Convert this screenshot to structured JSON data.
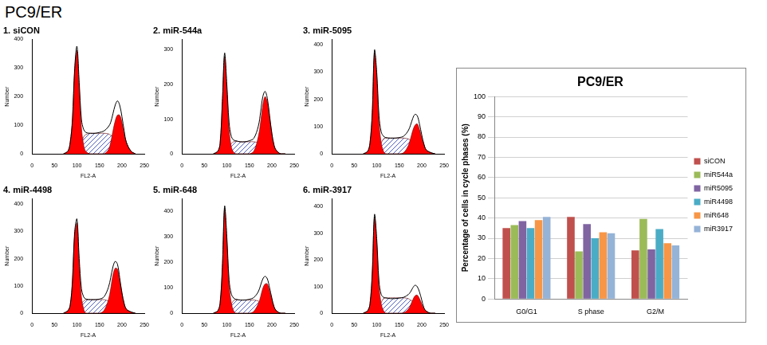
{
  "page_title": "PC9/ER",
  "chart_data": [
    {
      "type": "line",
      "title": "1. siCON",
      "x_label": "FL2-A",
      "y_label": "Number",
      "x": [
        70,
        80,
        85,
        90,
        95,
        100,
        105,
        110,
        115,
        120,
        130,
        140,
        150,
        160,
        170,
        175,
        180,
        185,
        190,
        195,
        200,
        205,
        210,
        220,
        230
      ],
      "series": [
        {
          "type": "line",
          "color": "#000000",
          "values": [
            0,
            10,
            40,
            120,
            300,
            375,
            250,
            120,
            85,
            75,
            72,
            72,
            75,
            80,
            95,
            110,
            140,
            170,
            185,
            170,
            130,
            80,
            40,
            10,
            0
          ]
        },
        {
          "type": "area",
          "color": "#ff0000",
          "values": [
            0,
            10,
            40,
            120,
            290,
            360,
            230,
            90,
            30,
            8,
            0,
            0,
            0,
            0,
            0,
            0,
            0,
            0,
            0,
            0,
            0,
            0,
            0,
            0,
            0
          ]
        },
        {
          "type": "area",
          "color": "#ff0000",
          "values": [
            0,
            0,
            0,
            0,
            0,
            0,
            0,
            0,
            0,
            0,
            0,
            0,
            0,
            0,
            15,
            40,
            80,
            115,
            135,
            135,
            110,
            70,
            40,
            10,
            0
          ]
        },
        {
          "type": "area",
          "color": "#5060c0",
          "values": [
            0,
            0,
            0,
            0,
            0,
            10,
            25,
            40,
            60,
            68,
            72,
            72,
            72,
            72,
            70,
            65,
            60,
            50,
            40,
            30,
            20,
            10,
            0,
            0,
            0
          ]
        }
      ],
      "xlim": [
        0,
        250
      ],
      "xticks": [
        0,
        50,
        100,
        150,
        200,
        250
      ],
      "ylim": [
        0,
        400
      ],
      "yticks": [
        0,
        100,
        200,
        300,
        400
      ],
      "grid": false
    },
    {
      "type": "line",
      "title": "2. miR-544a",
      "x_label": "FL2-A",
      "y_label": "Number",
      "x": [
        70,
        80,
        85,
        90,
        95,
        100,
        105,
        110,
        115,
        120,
        130,
        140,
        150,
        160,
        170,
        175,
        180,
        185,
        190,
        195,
        200,
        205,
        210,
        220,
        230
      ],
      "series": [
        {
          "type": "line",
          "color": "#000000",
          "values": [
            0,
            8,
            30,
            150,
            290,
            200,
            90,
            50,
            40,
            38,
            35,
            35,
            38,
            45,
            80,
            120,
            165,
            180,
            160,
            110,
            60,
            25,
            10,
            0,
            0
          ]
        },
        {
          "type": "area",
          "color": "#ff0000",
          "values": [
            0,
            8,
            30,
            145,
            280,
            185,
            70,
            20,
            5,
            0,
            0,
            0,
            0,
            0,
            0,
            0,
            0,
            0,
            0,
            0,
            0,
            0,
            0,
            0,
            0
          ]
        },
        {
          "type": "area",
          "color": "#ff0000",
          "values": [
            0,
            0,
            0,
            0,
            0,
            0,
            0,
            0,
            0,
            0,
            0,
            0,
            0,
            8,
            50,
            90,
            140,
            165,
            150,
            105,
            58,
            24,
            10,
            0,
            0
          ]
        },
        {
          "type": "area",
          "color": "#5060c0",
          "values": [
            0,
            0,
            0,
            0,
            0,
            10,
            20,
            30,
            35,
            36,
            35,
            35,
            35,
            35,
            32,
            28,
            22,
            15,
            8,
            0,
            0,
            0,
            0,
            0,
            0
          ]
        }
      ],
      "xlim": [
        0,
        250
      ],
      "xticks": [
        0,
        50,
        100,
        150,
        200,
        250
      ],
      "ylim": [
        0,
        330
      ],
      "yticks": [
        0,
        100,
        200,
        300
      ],
      "grid": false
    },
    {
      "type": "line",
      "title": "3. miR-5095",
      "x_label": "FL2-A",
      "y_label": "Number",
      "x": [
        70,
        80,
        85,
        90,
        95,
        100,
        105,
        110,
        115,
        120,
        130,
        140,
        150,
        160,
        170,
        175,
        180,
        185,
        190,
        195,
        200,
        205,
        210,
        220,
        230
      ],
      "series": [
        {
          "type": "line",
          "color": "#000000",
          "values": [
            0,
            10,
            40,
            150,
            380,
            300,
            140,
            80,
            65,
            60,
            58,
            58,
            60,
            65,
            85,
            105,
            130,
            145,
            140,
            110,
            70,
            35,
            15,
            5,
            0
          ]
        },
        {
          "type": "area",
          "color": "#ff0000",
          "values": [
            0,
            10,
            40,
            145,
            370,
            285,
            115,
            40,
            10,
            0,
            0,
            0,
            0,
            0,
            0,
            0,
            0,
            0,
            0,
            0,
            0,
            0,
            0,
            0,
            0
          ]
        },
        {
          "type": "area",
          "color": "#ff0000",
          "values": [
            0,
            0,
            0,
            0,
            0,
            0,
            0,
            0,
            0,
            0,
            0,
            0,
            0,
            5,
            30,
            55,
            85,
            105,
            110,
            90,
            60,
            35,
            15,
            5,
            0
          ]
        },
        {
          "type": "area",
          "color": "#5060c0",
          "values": [
            0,
            0,
            0,
            0,
            0,
            10,
            25,
            40,
            55,
            58,
            58,
            58,
            58,
            58,
            55,
            50,
            45,
            38,
            30,
            20,
            10,
            0,
            0,
            0,
            0
          ]
        }
      ],
      "xlim": [
        0,
        250
      ],
      "xticks": [
        0,
        50,
        100,
        150,
        200,
        250
      ],
      "ylim": [
        0,
        420
      ],
      "yticks": [
        0,
        100,
        200,
        300,
        400
      ],
      "grid": false
    },
    {
      "type": "line",
      "title": "4. miR-4498",
      "x_label": "FL2-A",
      "y_label": "Number",
      "x": [
        70,
        80,
        85,
        90,
        95,
        100,
        105,
        110,
        115,
        120,
        130,
        140,
        150,
        160,
        170,
        175,
        180,
        185,
        190,
        195,
        200,
        205,
        210,
        220,
        230
      ],
      "series": [
        {
          "type": "line",
          "color": "#000000",
          "values": [
            0,
            10,
            30,
            120,
            300,
            345,
            200,
            90,
            60,
            52,
            50,
            50,
            52,
            60,
            95,
            130,
            170,
            190,
            180,
            130,
            75,
            35,
            15,
            5,
            0
          ]
        },
        {
          "type": "area",
          "color": "#ff0000",
          "values": [
            0,
            10,
            30,
            115,
            290,
            330,
            180,
            60,
            15,
            0,
            0,
            0,
            0,
            0,
            0,
            0,
            0,
            0,
            0,
            0,
            0,
            0,
            0,
            0,
            0
          ]
        },
        {
          "type": "area",
          "color": "#ff0000",
          "values": [
            0,
            0,
            0,
            0,
            0,
            0,
            0,
            0,
            0,
            0,
            0,
            0,
            0,
            10,
            50,
            90,
            140,
            165,
            162,
            120,
            75,
            35,
            15,
            5,
            0
          ]
        },
        {
          "type": "area",
          "color": "#5060c0",
          "values": [
            0,
            0,
            0,
            0,
            0,
            10,
            20,
            35,
            45,
            50,
            50,
            50,
            50,
            50,
            45,
            40,
            32,
            25,
            18,
            10,
            0,
            0,
            0,
            0,
            0
          ]
        }
      ],
      "xlim": [
        0,
        250
      ],
      "xticks": [
        0,
        50,
        100,
        150,
        200,
        250
      ],
      "ylim": [
        0,
        420
      ],
      "yticks": [
        0,
        100,
        200,
        300,
        400
      ],
      "grid": false
    },
    {
      "type": "line",
      "title": "5. miR-648",
      "x_label": "FL2-A",
      "y_label": "Number",
      "x": [
        70,
        80,
        85,
        90,
        95,
        100,
        105,
        110,
        115,
        120,
        130,
        140,
        150,
        160,
        170,
        175,
        180,
        185,
        190,
        195,
        200,
        205,
        210,
        220,
        230
      ],
      "series": [
        {
          "type": "line",
          "color": "#000000",
          "values": [
            0,
            10,
            40,
            180,
            420,
            300,
            130,
            75,
            60,
            55,
            52,
            52,
            55,
            62,
            85,
            110,
            135,
            145,
            135,
            100,
            60,
            25,
            10,
            0,
            0
          ]
        },
        {
          "type": "area",
          "color": "#ff0000",
          "values": [
            0,
            10,
            40,
            175,
            410,
            285,
            110,
            40,
            10,
            0,
            0,
            0,
            0,
            0,
            0,
            0,
            0,
            0,
            0,
            0,
            0,
            0,
            0,
            0,
            0
          ]
        },
        {
          "type": "area",
          "color": "#ff0000",
          "values": [
            0,
            0,
            0,
            0,
            0,
            0,
            0,
            0,
            0,
            0,
            0,
            0,
            0,
            8,
            38,
            65,
            98,
            115,
            115,
            88,
            55,
            25,
            10,
            0,
            0
          ]
        },
        {
          "type": "area",
          "color": "#5060c0",
          "values": [
            0,
            0,
            0,
            0,
            0,
            10,
            20,
            35,
            50,
            53,
            52,
            52,
            52,
            52,
            48,
            42,
            35,
            28,
            20,
            12,
            5,
            0,
            0,
            0,
            0
          ]
        }
      ],
      "xlim": [
        0,
        250
      ],
      "xticks": [
        0,
        50,
        100,
        150,
        200,
        250
      ],
      "ylim": [
        0,
        450
      ],
      "yticks": [
        0,
        100,
        200,
        300,
        400
      ],
      "grid": false
    },
    {
      "type": "line",
      "title": "6. miR-3917",
      "x_label": "FL2-A",
      "y_label": "Number",
      "x": [
        70,
        80,
        85,
        90,
        95,
        100,
        105,
        110,
        115,
        120,
        130,
        140,
        150,
        160,
        170,
        175,
        180,
        185,
        190,
        195,
        200,
        205,
        210,
        220,
        230
      ],
      "series": [
        {
          "type": "line",
          "color": "#000000",
          "values": [
            0,
            10,
            35,
            150,
            370,
            280,
            120,
            70,
            60,
            58,
            55,
            55,
            57,
            60,
            70,
            80,
            95,
            105,
            100,
            80,
            50,
            20,
            8,
            0,
            0
          ]
        },
        {
          "type": "area",
          "color": "#ff0000",
          "values": [
            0,
            10,
            35,
            145,
            360,
            265,
            100,
            35,
            10,
            0,
            0,
            0,
            0,
            0,
            0,
            0,
            0,
            0,
            0,
            0,
            0,
            0,
            0,
            0,
            0
          ]
        },
        {
          "type": "area",
          "color": "#ff0000",
          "values": [
            0,
            0,
            0,
            0,
            0,
            0,
            0,
            0,
            0,
            0,
            0,
            0,
            0,
            2,
            15,
            30,
            50,
            65,
            68,
            55,
            35,
            18,
            8,
            0,
            0
          ]
        },
        {
          "type": "area",
          "color": "#5060c0",
          "values": [
            0,
            0,
            0,
            0,
            0,
            10,
            25,
            40,
            55,
            57,
            58,
            58,
            58,
            58,
            55,
            50,
            45,
            40,
            32,
            25,
            15,
            5,
            0,
            0,
            0
          ]
        }
      ],
      "xlim": [
        0,
        250
      ],
      "xticks": [
        0,
        50,
        100,
        150,
        200,
        250
      ],
      "ylim": [
        0,
        430
      ],
      "yticks": [
        0,
        100,
        200,
        300,
        400
      ],
      "grid": false
    },
    {
      "type": "bar",
      "title": "PC9/ER",
      "y_label": "Percentage of cells in cycle phases (%)",
      "categories": [
        "G0/G1",
        "S phase",
        "G2/M"
      ],
      "series": [
        {
          "name": "siCON",
          "color": "#c0504d",
          "values": [
            35,
            40.5,
            24
          ]
        },
        {
          "name": "miR544a",
          "color": "#9bbb59",
          "values": [
            36.5,
            23.5,
            39.5
          ]
        },
        {
          "name": "miR5095",
          "color": "#8064a2",
          "values": [
            38.5,
            37,
            24.5
          ]
        },
        {
          "name": "miR4498",
          "color": "#4bacc6",
          "values": [
            35,
            30,
            34.5
          ]
        },
        {
          "name": "miR648",
          "color": "#f79646",
          "values": [
            39,
            33,
            27.5
          ]
        },
        {
          "name": "miR3917",
          "color": "#95b3d7",
          "values": [
            40.5,
            32.5,
            26.5
          ]
        }
      ],
      "ylim": [
        0,
        100
      ],
      "yticks": [
        0,
        10,
        20,
        30,
        40,
        50,
        60,
        70,
        80,
        90,
        100
      ],
      "grid": true,
      "legend": "right"
    }
  ]
}
